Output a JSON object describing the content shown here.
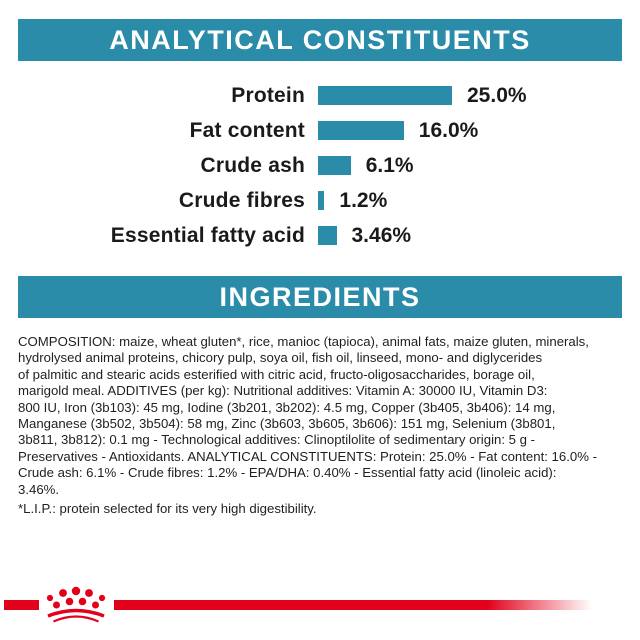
{
  "colors": {
    "accent_teal": "#2b8ca9",
    "brand_red": "#e2001a",
    "text_dark": "#1a1a1a"
  },
  "sections": {
    "analytical_header": "ANALYTICAL CONSTITUENTS",
    "ingredients_header": "INGREDIENTS"
  },
  "chart_data": {
    "type": "bar",
    "orientation": "horizontal",
    "title": "ANALYTICAL CONSTITUENTS",
    "categories": [
      "Protein",
      "Fat content",
      "Crude ash",
      "Crude fibres",
      "Essential fatty acid"
    ],
    "values": [
      25.0,
      16.0,
      6.1,
      1.2,
      3.46
    ],
    "value_labels": [
      "25.0%",
      "16.0%",
      "6.1%",
      "1.2%",
      "3.46%"
    ],
    "xlim": [
      0,
      25
    ],
    "grid": false,
    "legend": false,
    "bar_color": "#2b8ca9"
  },
  "ingredients": {
    "lines": [
      "COMPOSITION: maize, wheat gluten*, rice, manioc (tapioca), animal fats, maize gluten, minerals,",
      "hydrolysed animal proteins, chicory pulp, soya oil, fish oil, linseed, mono- and diglycerides",
      "of palmitic and stearic acids esterified with citric acid, fructo-oligosaccharides, borage oil,",
      "marigold meal. ADDITIVES (per kg): Nutritional additives: Vitamin A: 30000 IU, Vitamin D3:",
      "800 IU, Iron (3b103): 45 mg, Iodine (3b201, 3b202): 4.5 mg, Copper (3b405, 3b406): 14 mg,",
      "Manganese (3b502, 3b504): 58 mg, Zinc (3b603, 3b605, 3b606): 151 mg, Selenium (3b801,",
      "3b811, 3b812): 0.1 mg - Technological additives: Clinoptilolite of sedimentary origin: 5 g -",
      "Preservatives - Antioxidants. ANALYTICAL CONSTITUENTS: Protein: 25.0% - Fat content: 16.0% -",
      "Crude ash: 6.1% - Crude fibres: 1.2% - EPA/DHA: 0.40% - Essential fatty acid (linoleic acid):",
      "3.46%."
    ],
    "footnote": "*L.I.P.: protein selected for its very high digestibility."
  },
  "footer": {
    "logo": "royal-canin-crown"
  }
}
